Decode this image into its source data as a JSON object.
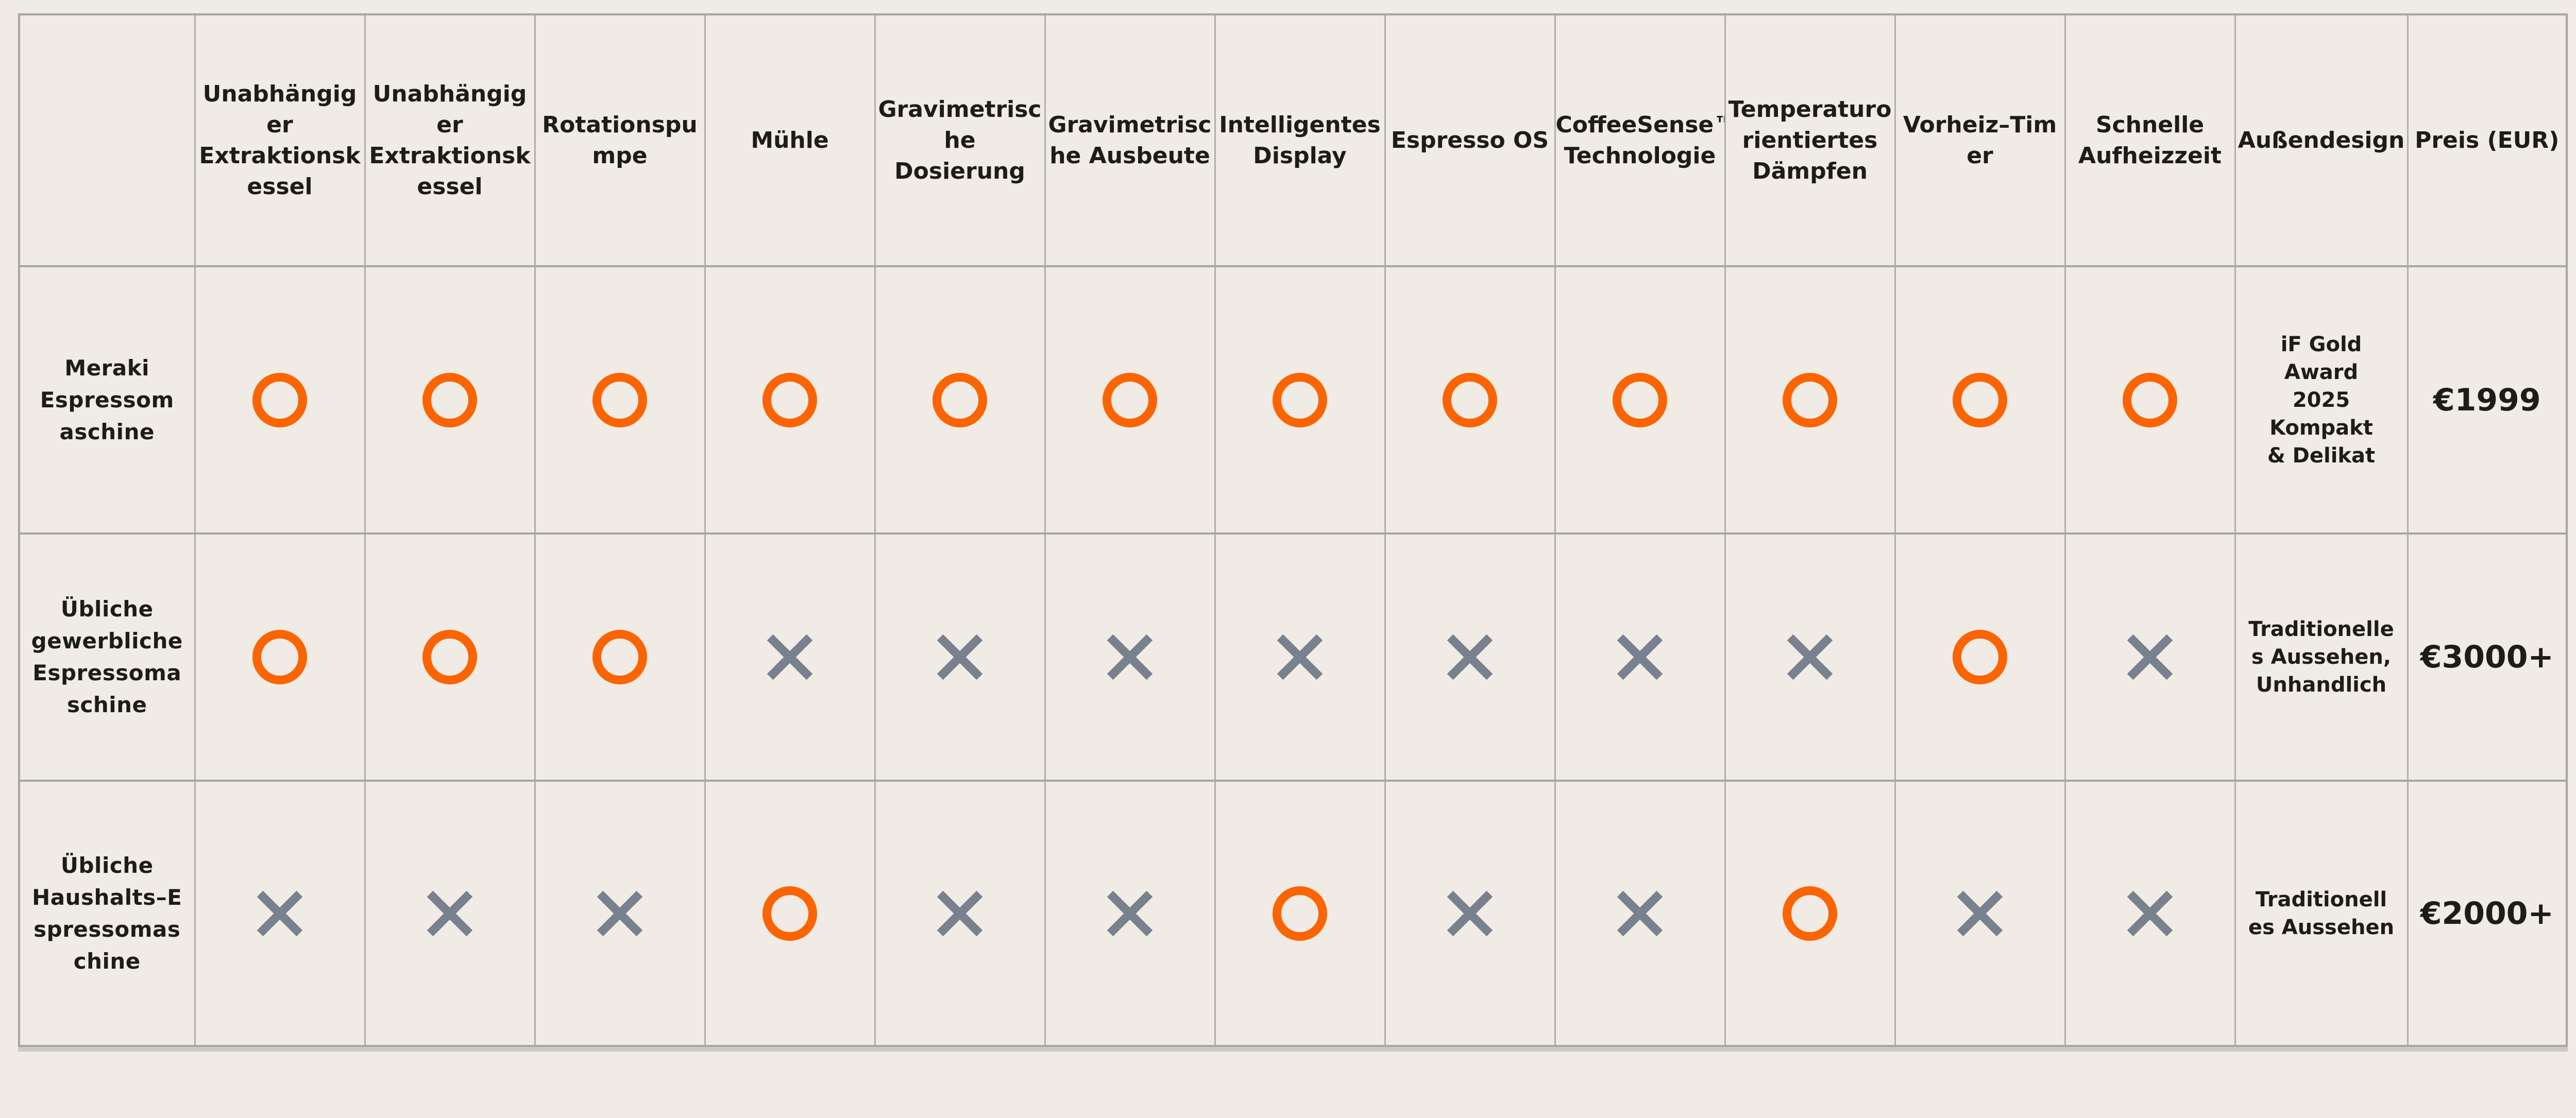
{
  "chart_data": {
    "type": "table",
    "columns": [
      "",
      "Unabhängiger Extraktionskessel",
      "Unabhängiger Extraktionskessel",
      "Rotationspumpe",
      "Mühle",
      "Gravimetrische Dosierung",
      "Gravimetrische Ausbeute",
      "Intelligentes Display",
      "Espresso OS",
      "CoffeeSense™ Technologie",
      "Temperaturorientiertes Dämpfen",
      "Vorheiz–Timer",
      "Schnelle Aufheizzeit",
      "Außendesign",
      "Preis (EUR)"
    ],
    "rows": [
      {
        "name": "Meraki Espressomaschine",
        "features": [
          "yes",
          "yes",
          "yes",
          "yes",
          "yes",
          "yes",
          "yes",
          "yes",
          "yes",
          "yes",
          "yes",
          "yes"
        ],
        "aussendesign": "iF Gold Award 2025 Kompakt & Delikat",
        "preis": "€1999"
      },
      {
        "name": "Übliche gewerbliche Espressomaschine",
        "features": [
          "yes",
          "yes",
          "yes",
          "no",
          "no",
          "no",
          "no",
          "no",
          "no",
          "no",
          "yes",
          "no"
        ],
        "aussendesign": "Traditionelles Aussehen, Unhandlich",
        "preis": "€3000+"
      },
      {
        "name": "Übliche Haushalts–Espressomaschine",
        "features": [
          "no",
          "no",
          "no",
          "yes",
          "no",
          "no",
          "yes",
          "no",
          "no",
          "yes",
          "no",
          "no"
        ],
        "aussendesign": "Traditionelles Aussehen",
        "preis": "€2000+"
      }
    ],
    "legend": {
      "yes": "orangefarbener Ring = vorhanden",
      "no": "graues Kreuz = nicht vorhanden"
    }
  },
  "ui": {
    "header": [
      "",
      "Unabhängig\ner\nExtraktionsk\nessel",
      "Unabhängig\ner\nExtraktionsk\nessel",
      "Rotationspu\nmpe",
      "Mühle",
      "Gravimetrisc\nhe\nDosierung",
      "Gravimetrisc\nhe Ausbeute",
      "Intelligentes\nDisplay",
      "Espresso OS",
      "CoffeeSense™\nTechnologie",
      "Temperaturo\nrientiertes\nDämpfen",
      "Vorheiz–Tim\ner",
      "Schnelle\nAufheizzeit",
      "Außendesign",
      "Preis (EUR)"
    ],
    "rows": [
      {
        "label": "Meraki\nEspressom\naschine",
        "features": [
          "yes",
          "yes",
          "yes",
          "yes",
          "yes",
          "yes",
          "yes",
          "yes",
          "yes",
          "yes",
          "yes",
          "yes"
        ],
        "design": "iF Gold\nAward\n2025\nKompakt\n& Delikat",
        "price": "€1999"
      },
      {
        "label": "Übliche\ngewerbliche\nEspressoma\nschine",
        "features": [
          "yes",
          "yes",
          "yes",
          "no",
          "no",
          "no",
          "no",
          "no",
          "no",
          "no",
          "yes",
          "no"
        ],
        "design": "Traditionelle\ns Aussehen,\nUnhandlich",
        "price": "€3000+"
      },
      {
        "label": "Übliche\nHaushalts–E\nspressomas\nchine",
        "features": [
          "no",
          "no",
          "no",
          "yes",
          "no",
          "no",
          "yes",
          "no",
          "no",
          "yes",
          "no",
          "no"
        ],
        "design": "Traditionell\nes Aussehen",
        "price": "€2000+"
      }
    ]
  },
  "icons": {
    "yes": "orange-circle-icon",
    "no": "gray-cross-icon"
  },
  "colors": {
    "accent_orange": "#FB6400",
    "cross_gray": "#78828E",
    "background": "#F0EBE4",
    "grid_line": "#A6A6A6",
    "text": "#1C1C1A"
  }
}
